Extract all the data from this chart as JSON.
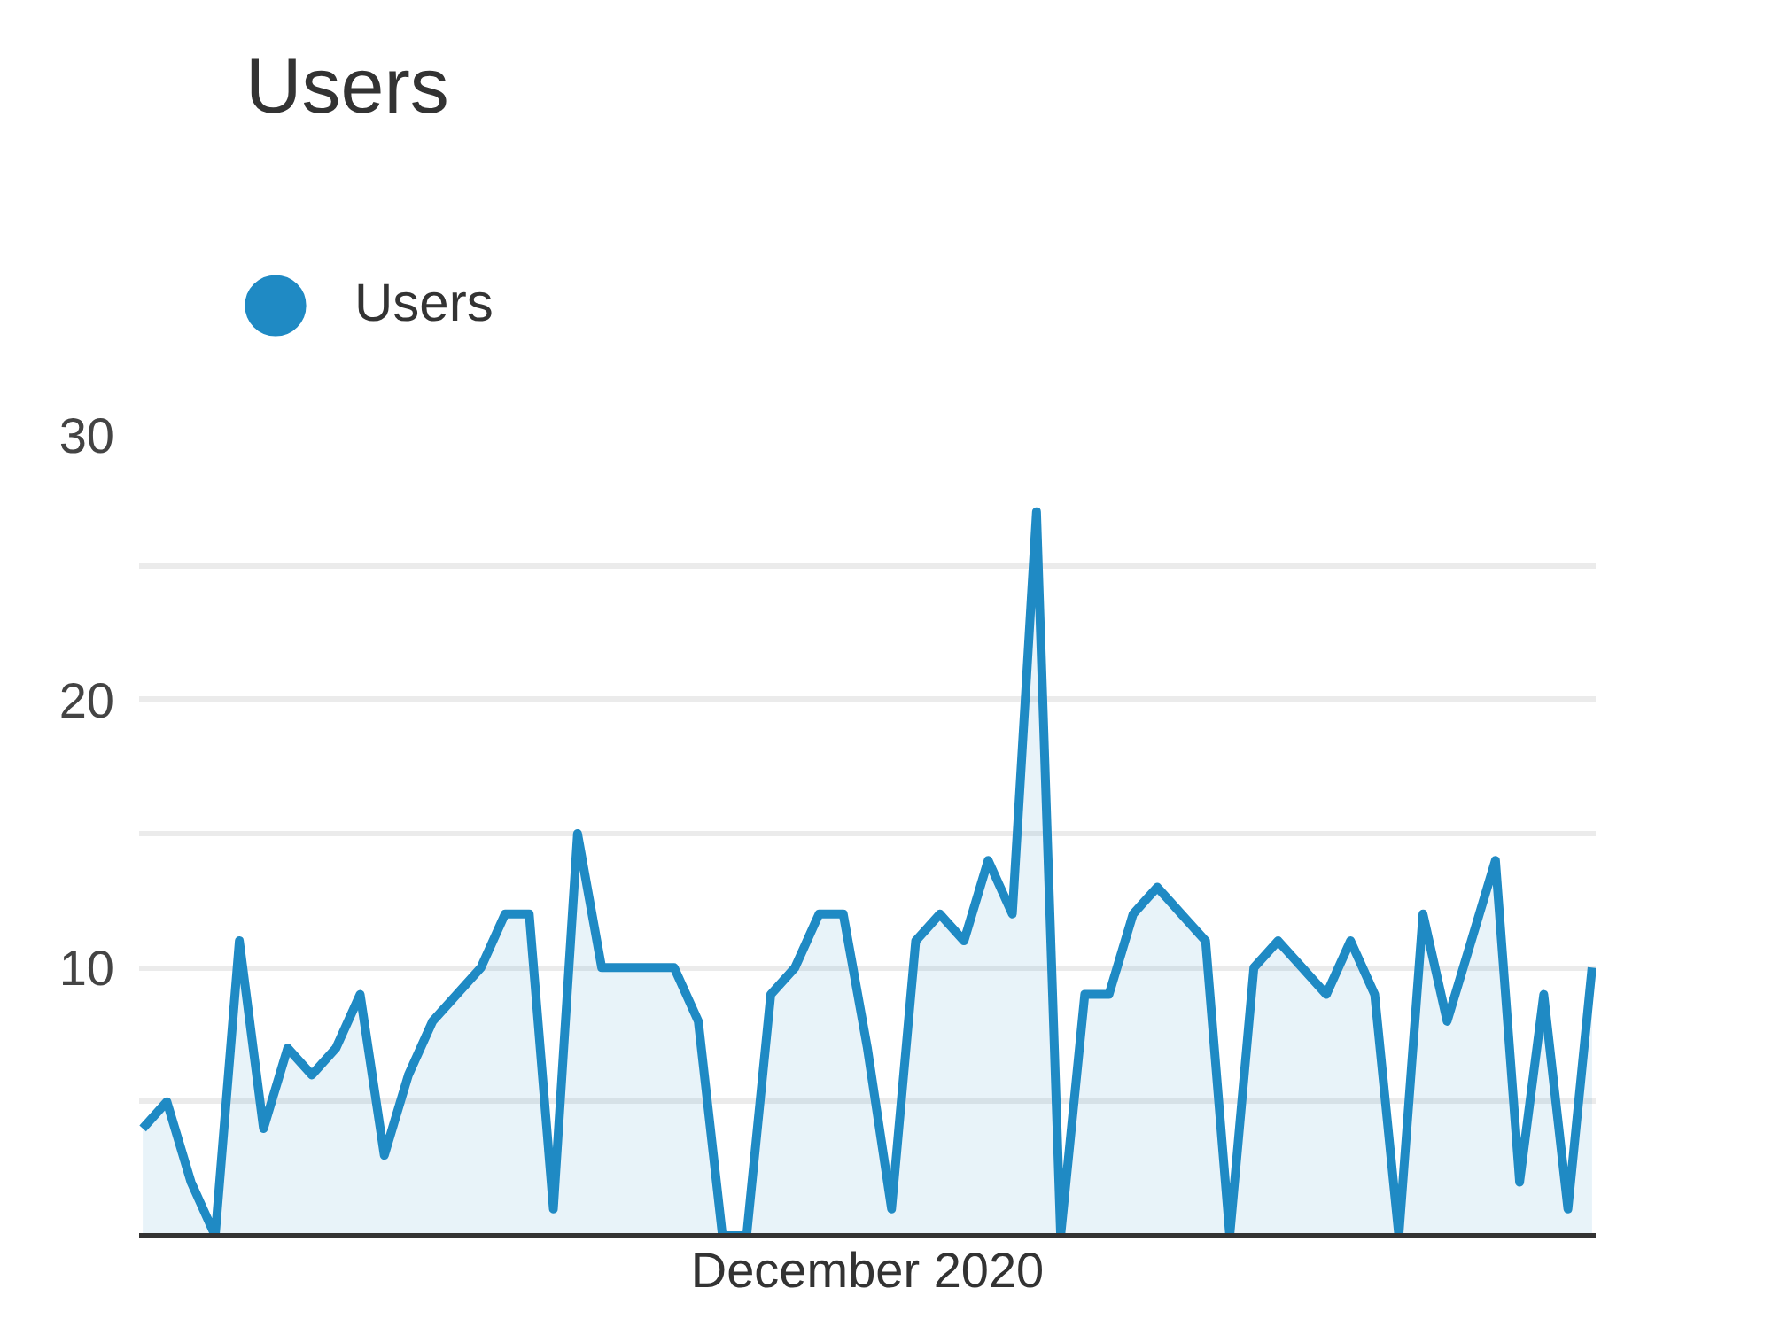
{
  "chart_data": {
    "type": "area",
    "title": "Users",
    "xlabel": "December 2020",
    "categories": [
      null,
      null,
      null,
      null,
      null,
      null,
      null,
      null,
      null,
      null,
      null,
      null,
      null,
      null,
      null,
      null,
      null,
      null,
      null,
      null,
      null,
      null,
      null,
      null,
      null,
      null,
      null,
      null,
      null,
      null,
      null,
      null,
      null,
      null,
      null,
      null,
      null,
      null,
      null,
      null,
      null,
      null,
      null,
      null,
      null,
      null,
      null,
      null,
      null,
      null,
      null,
      null,
      null,
      null,
      null,
      null,
      null,
      null,
      null,
      null,
      null
    ],
    "series": [
      {
        "name": "Users",
        "color": "#1f8ac4",
        "values": [
          4,
          5,
          2,
          0,
          11,
          4,
          7,
          6,
          7,
          9,
          3,
          6,
          8,
          9,
          10,
          12,
          12,
          1,
          15,
          10,
          10,
          10,
          10,
          8,
          0,
          0,
          9,
          10,
          12,
          12,
          7,
          1,
          11,
          12,
          11,
          14,
          12,
          27,
          0,
          9,
          9,
          12,
          13,
          12,
          11,
          0,
          10,
          11,
          10,
          9,
          11,
          9,
          0,
          12,
          8,
          11,
          14,
          2,
          9,
          1,
          10
        ]
      }
    ],
    "ylim": [
      0,
      30
    ],
    "yticks": [
      {
        "value": 5,
        "label": null
      },
      10,
      {
        "value": 15,
        "label": null
      },
      20,
      {
        "value": 25,
        "label": null
      },
      30
    ],
    "grid": "y",
    "legend": "top left",
    "line_style": "solid"
  }
}
